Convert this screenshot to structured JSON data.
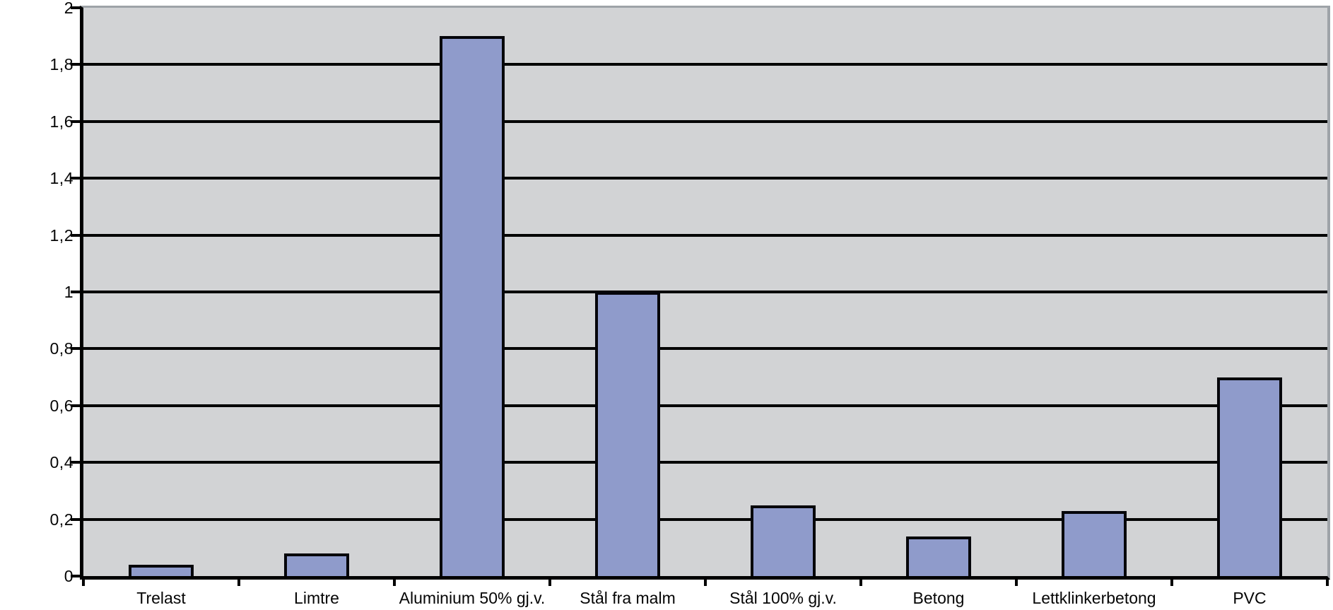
{
  "chart_data": {
    "type": "bar",
    "title": "",
    "xlabel": "",
    "ylabel": "",
    "categories": [
      "Trelast",
      "Limtre",
      "Aluminium 50% gj.v.",
      "Stål fra malm",
      "Stål 100% gj.v.",
      "Betong",
      "Lettklinkerbetong",
      "PVC"
    ],
    "values": [
      0.04,
      0.08,
      1.9,
      1.0,
      0.25,
      0.14,
      0.23,
      0.7
    ],
    "ylim": [
      0,
      2
    ],
    "ytick_step": 0.2,
    "yticks": [
      {
        "value": 0,
        "label": "0"
      },
      {
        "value": 0.2,
        "label": "0,2"
      },
      {
        "value": 0.4,
        "label": "0,4"
      },
      {
        "value": 0.6,
        "label": "0,6"
      },
      {
        "value": 0.8,
        "label": "0,8"
      },
      {
        "value": 1,
        "label": "1"
      },
      {
        "value": 1.2,
        "label": "1,2"
      },
      {
        "value": 1.4,
        "label": "1,4"
      },
      {
        "value": 1.6,
        "label": "1,6"
      },
      {
        "value": 1.8,
        "label": "1,8"
      },
      {
        "value": 2,
        "label": "2"
      }
    ],
    "grid": "horizontal-black",
    "legend": "none",
    "decimal_separator": ",",
    "colors": {
      "bar_fill": "#8F9BCB",
      "bar_border": "#05050A",
      "plot_background": "#D2D3D5",
      "gridline": "#030303",
      "axis": "#000000",
      "plot_border_top_right": "#9EA3A8",
      "page_background": "#FFFFFF",
      "text": "#050505"
    }
  }
}
